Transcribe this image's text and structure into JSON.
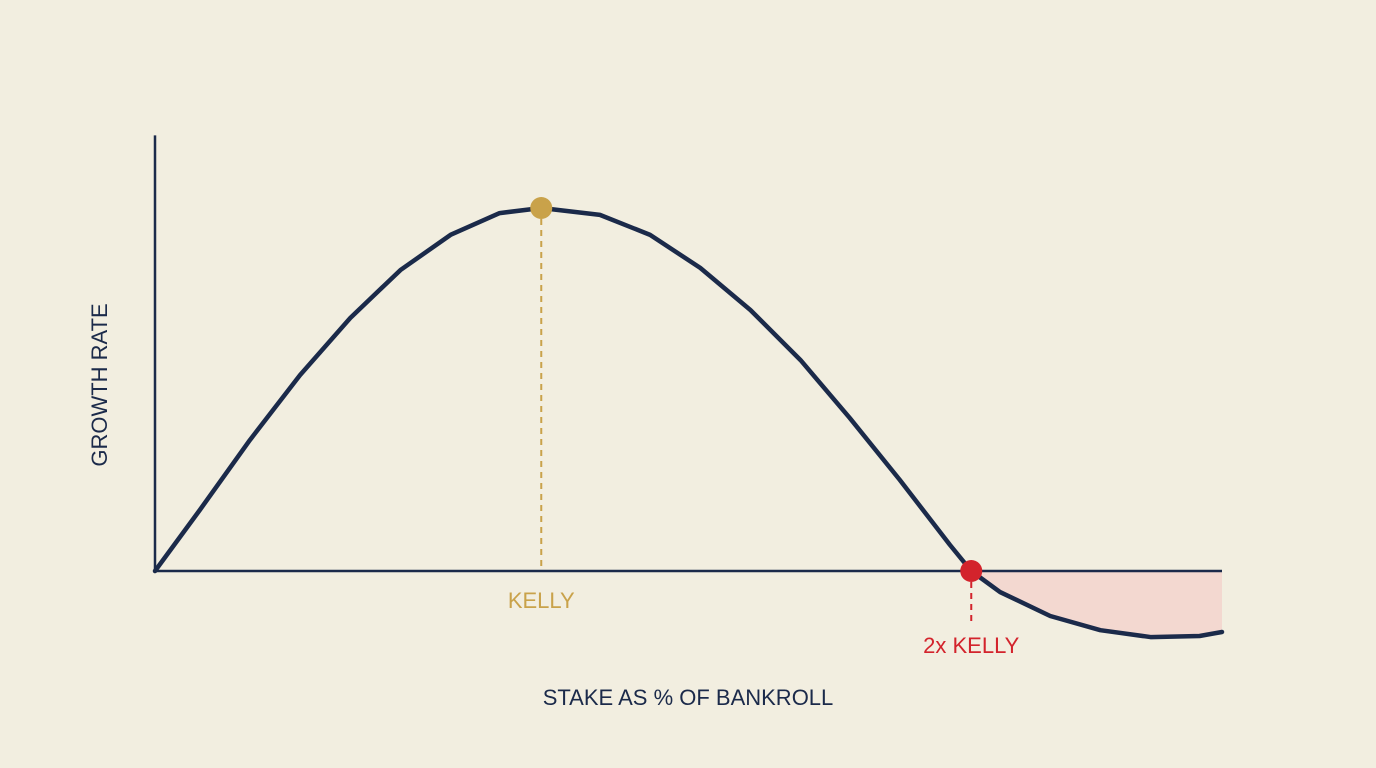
{
  "chart_data": {
    "type": "line",
    "x_label": "STAKE AS % OF BANKROLL",
    "y_label": "GROWTH RATE",
    "x": [
      0,
      0.42,
      0.89,
      1.36,
      1.83,
      2.3,
      2.77,
      3.23,
      3.62,
      4.17,
      4.64,
      5.11,
      5.58,
      6.05,
      6.51,
      6.98,
      7.45,
      7.65,
      7.92,
      8.39,
      8.86,
      9.33,
      9.79,
      10
    ],
    "values": [
      0,
      1.68,
      3.61,
      5.4,
      6.97,
      8.29,
      9.26,
      9.86,
      10,
      9.81,
      9.26,
      8.35,
      7.19,
      5.81,
      4.22,
      2.51,
      0.72,
      0,
      -0.58,
      -1.24,
      -1.63,
      -1.82,
      -1.79,
      -1.68
    ],
    "color": "#1b2a4a",
    "negative_fill": "#f3d8d0",
    "xlim": [
      0,
      10
    ],
    "ylim": [
      -2,
      12
    ],
    "annotations": [
      {
        "text": "KELLY",
        "x": 3.62,
        "y": 10,
        "color": "#c9a24a"
      },
      {
        "text": "2x KELLY",
        "x": 7.65,
        "y": 0,
        "color": "#d3232c"
      }
    ]
  }
}
